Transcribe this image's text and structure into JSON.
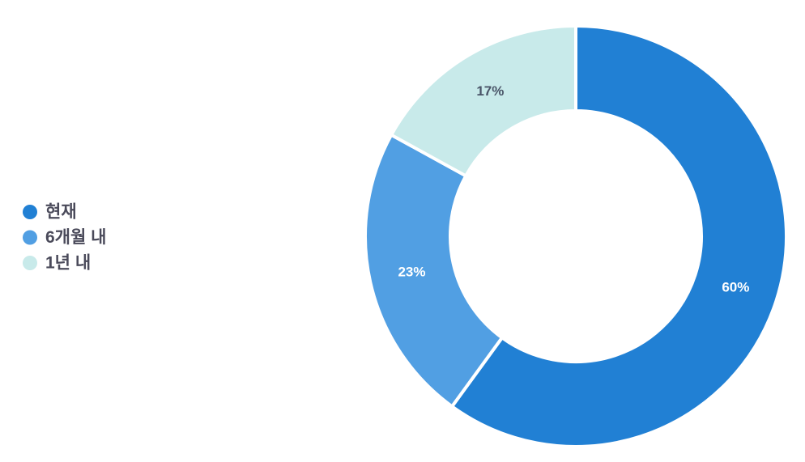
{
  "chart_data": {
    "type": "donut",
    "categories": [
      "현재",
      "6개월 내",
      "1년 내"
    ],
    "values": [
      60,
      23,
      17
    ],
    "value_labels": [
      "60%",
      "23%",
      "17%"
    ],
    "colors": [
      "#2180d4",
      "#519fe3",
      "#c8eaea"
    ],
    "label_colors": [
      "#ffffff",
      "#ffffff",
      "#4a5568"
    ],
    "legend": "left"
  }
}
